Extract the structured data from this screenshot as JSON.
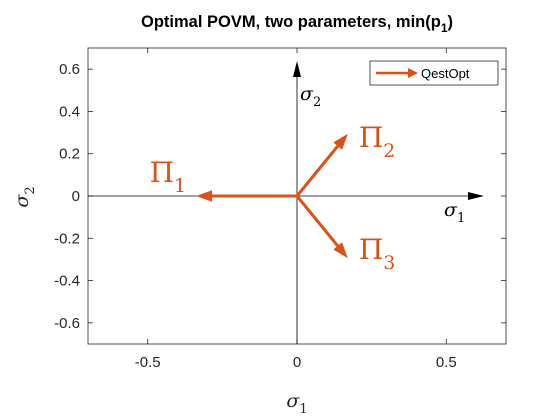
{
  "chart_data": {
    "type": "quiver",
    "title_main": "Optimal POVM, two parameters, min(p",
    "title_sub": "1",
    "title_tail": ")",
    "xlabel": {
      "symbol": "σ",
      "sub": "1"
    },
    "ylabel": {
      "symbol": "σ",
      "sub": "2"
    },
    "xlim": [
      -0.7,
      0.7
    ],
    "ylim": [
      -0.7,
      0.7
    ],
    "xticks": [
      -0.5,
      0,
      0.5
    ],
    "xtick_labels": [
      "-0.5",
      "0",
      "0.5"
    ],
    "yticks": [
      0.6,
      0.4,
      0.2,
      0,
      -0.2,
      -0.4,
      -0.6
    ],
    "ytick_labels": [
      "0.6",
      "0.4",
      "0.2",
      "0",
      "-0.2",
      "-0.4",
      "-0.6"
    ],
    "grid": false,
    "legend": {
      "position": "top-right",
      "entries": [
        "QestOpt"
      ]
    },
    "series": [
      {
        "name": "QestOpt",
        "color": "#d95319",
        "vectors": [
          {
            "x0": 0,
            "y0": 0,
            "dx": -0.333,
            "dy": 0,
            "label": "Π",
            "label_sub": "1"
          },
          {
            "x0": 0,
            "y0": 0,
            "dx": 0.167,
            "dy": 0.289,
            "label": "Π",
            "label_sub": "2"
          },
          {
            "x0": 0,
            "y0": 0,
            "dx": 0.167,
            "dy": -0.289,
            "label": "Π",
            "label_sub": "3"
          }
        ]
      }
    ],
    "inner_axes": {
      "x_label": {
        "symbol": "σ",
        "sub": "1"
      },
      "y_label": {
        "symbol": "σ",
        "sub": "2"
      }
    }
  }
}
